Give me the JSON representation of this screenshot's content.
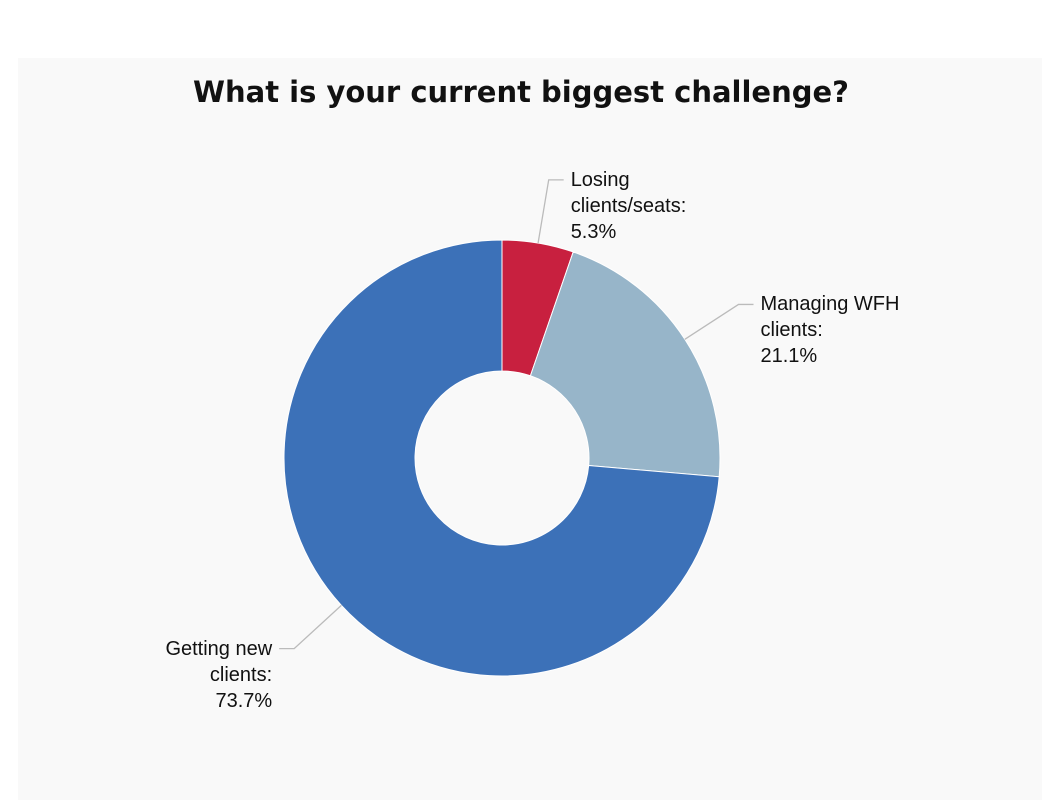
{
  "chart_data": {
    "type": "pie",
    "title": "What is your current biggest challenge?",
    "categories": [
      "Losing clients/seats:",
      "Managing WFH clients:",
      "Getting new clients:"
    ],
    "values": [
      5.3,
      21.1,
      73.7
    ],
    "value_labels": [
      "5.3%",
      "21.1%",
      "73.7%"
    ],
    "colors": [
      "#c8203f",
      "#97b5c9",
      "#3c71b8"
    ]
  }
}
